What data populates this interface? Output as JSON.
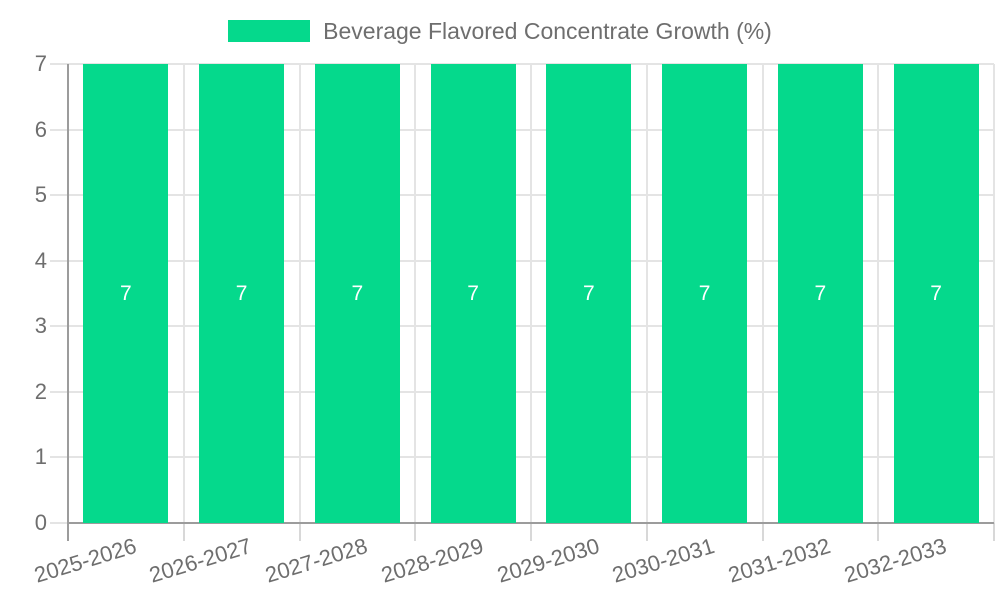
{
  "chart_data": {
    "type": "bar",
    "title": "Beverage Flavored Concentrate Growth (%)",
    "categories": [
      "2025-2026",
      "2026-2027",
      "2027-2028",
      "2028-2029",
      "2029-2030",
      "2030-2031",
      "2031-2032",
      "2032-2033"
    ],
    "series": [
      {
        "name": "Beverage Flavored Concentrate Growth (%)",
        "values": [
          7,
          7,
          7,
          7,
          7,
          7,
          7,
          7
        ]
      }
    ],
    "bar_labels": [
      "7",
      "7",
      "7",
      "7",
      "7",
      "7",
      "7",
      "7"
    ],
    "xlabel": "",
    "ylabel": "",
    "ylim": [
      0,
      7
    ],
    "yticks": [
      0,
      1,
      2,
      3,
      4,
      5,
      6,
      7
    ],
    "grid": true,
    "legend_position": "top",
    "x_tick_rotation_deg": -17,
    "colors": {
      "bar": "#05d98c",
      "bar_label": "#ffffff",
      "axis_text": "#6e6e6e",
      "grid_line": "#e4e4e4",
      "tick_line": "#d8d8d8",
      "axis_line": "#9c9c9c",
      "background": "#ffffff"
    }
  }
}
